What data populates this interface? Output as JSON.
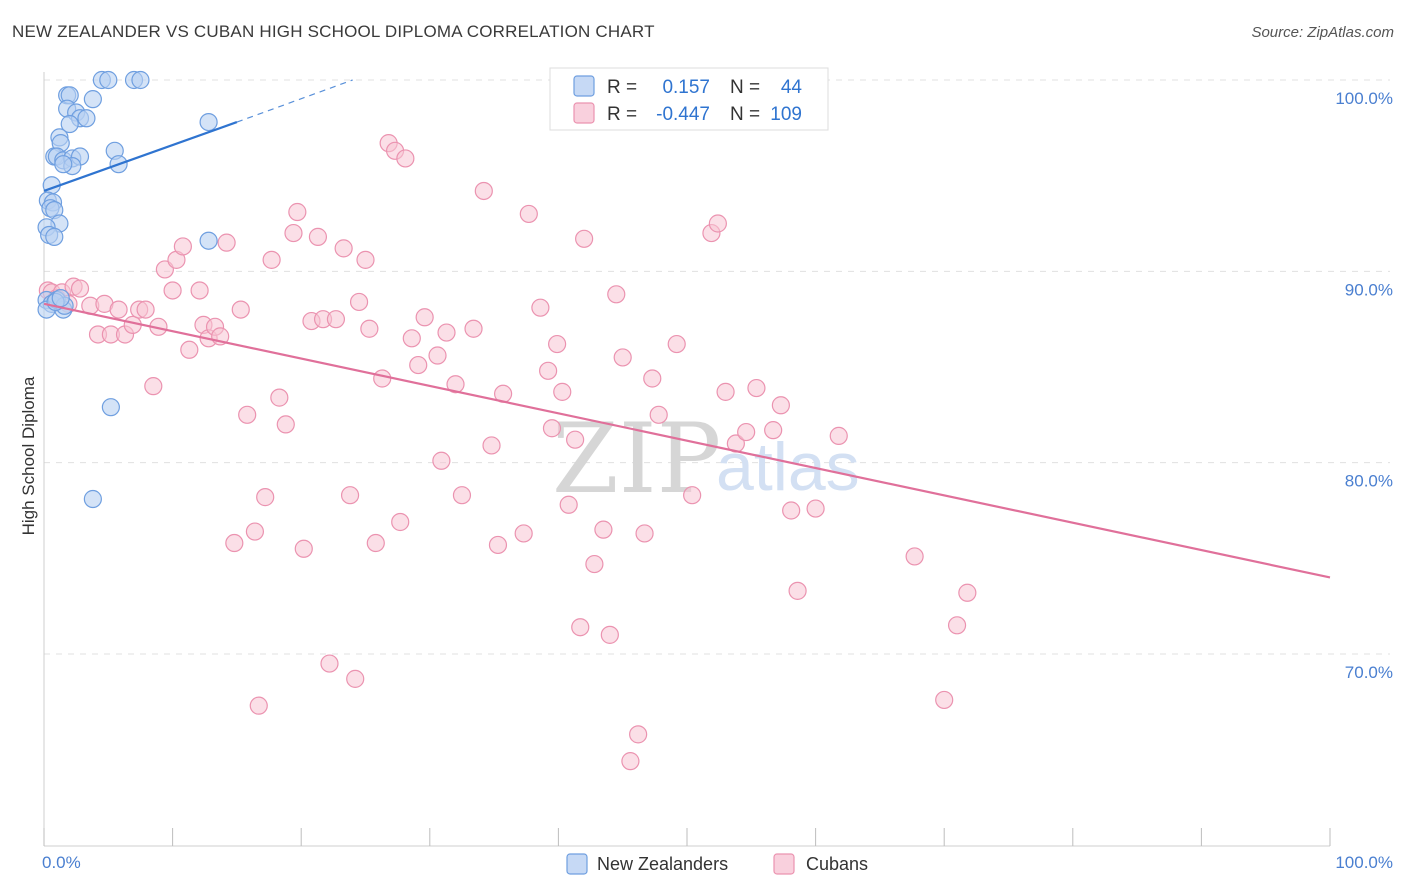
{
  "header": {
    "title": "NEW ZEALANDER VS CUBAN HIGH SCHOOL DIPLOMA CORRELATION CHART",
    "source": "Source: ZipAtlas.com"
  },
  "watermark": {
    "zip": "ZIP",
    "atlas": "atlas"
  },
  "legend": {
    "r_label": "R =",
    "n_label": "N =",
    "rows": [
      {
        "name": "New Zealanders",
        "r": "0.157",
        "n": "44"
      },
      {
        "name": "Cubans",
        "r": "-0.447",
        "n": "109"
      }
    ]
  },
  "colors": {
    "nz_fill": "#b8d0f2",
    "nz_stroke": "#6f9fe0",
    "nz_line": "#2f74d0",
    "cu_fill": "#f8c4d4",
    "cu_stroke": "#eb93b0",
    "cu_line": "#e0709a",
    "accent_text": "#2f74d0",
    "grid": "#e0e0e0"
  },
  "chart_data": {
    "type": "scatter",
    "title": "NEW ZEALANDER VS CUBAN HIGH SCHOOL DIPLOMA CORRELATION CHART",
    "xlabel": "",
    "ylabel": "High School Diploma",
    "xlim": [
      0,
      100
    ],
    "ylim": [
      60,
      101
    ],
    "x_tick_labels": [
      {
        "value": 0,
        "label": "0.0%"
      },
      {
        "value": 100,
        "label": "100.0%"
      }
    ],
    "y_ticks": [
      {
        "value": 100,
        "label": "100.0%"
      },
      {
        "value": 90,
        "label": "90.0%"
      },
      {
        "value": 80,
        "label": "80.0%"
      },
      {
        "value": 70,
        "label": "70.0%"
      }
    ],
    "x_minor_ticks": [
      0,
      10,
      20,
      30,
      40,
      50,
      60,
      70,
      80,
      90,
      100
    ],
    "series": [
      {
        "name": "New Zealanders",
        "R": 0.157,
        "N": 44,
        "trend": {
          "x1": 0,
          "y1": 94.2,
          "x2": 15,
          "y2": 97.8,
          "dashed_to_x": 24,
          "dashed_to_y": 100.0
        },
        "points": [
          [
            4.5,
            100.0
          ],
          [
            5.0,
            100.0
          ],
          [
            7.0,
            100.0
          ],
          [
            7.5,
            100.0
          ],
          [
            1.8,
            99.2
          ],
          [
            2.0,
            99.2
          ],
          [
            3.8,
            99.0
          ],
          [
            1.8,
            98.5
          ],
          [
            2.5,
            98.3
          ],
          [
            2.8,
            98.0
          ],
          [
            3.3,
            98.0
          ],
          [
            2.0,
            97.7
          ],
          [
            12.8,
            97.8
          ],
          [
            1.2,
            97.0
          ],
          [
            1.3,
            96.7
          ],
          [
            5.5,
            96.3
          ],
          [
            0.8,
            96.0
          ],
          [
            1.0,
            96.0
          ],
          [
            1.5,
            95.8
          ],
          [
            2.2,
            95.9
          ],
          [
            2.8,
            96.0
          ],
          [
            2.2,
            95.5
          ],
          [
            1.5,
            95.6
          ],
          [
            5.8,
            95.6
          ],
          [
            0.6,
            94.5
          ],
          [
            0.3,
            93.7
          ],
          [
            0.7,
            93.6
          ],
          [
            0.5,
            93.3
          ],
          [
            0.8,
            93.2
          ],
          [
            1.2,
            92.5
          ],
          [
            0.2,
            92.3
          ],
          [
            0.4,
            91.9
          ],
          [
            0.8,
            91.8
          ],
          [
            12.8,
            91.6
          ],
          [
            0.2,
            88.5
          ],
          [
            0.6,
            88.3
          ],
          [
            1.5,
            88.0
          ],
          [
            0.2,
            88.0
          ],
          [
            1.0,
            88.5
          ],
          [
            5.2,
            82.9
          ],
          [
            3.8,
            78.1
          ],
          [
            1.6,
            88.2
          ],
          [
            0.9,
            88.4
          ],
          [
            1.3,
            88.6
          ]
        ]
      },
      {
        "name": "Cubans",
        "R": -0.447,
        "N": 109,
        "trend": {
          "x1": 0,
          "y1": 88.3,
          "x2": 100,
          "y2": 74.0
        },
        "points": [
          [
            0.3,
            89.0
          ],
          [
            0.6,
            88.9
          ],
          [
            1.0,
            88.6
          ],
          [
            1.4,
            88.9
          ],
          [
            1.9,
            88.3
          ],
          [
            2.3,
            89.2
          ],
          [
            2.8,
            89.1
          ],
          [
            3.6,
            88.2
          ],
          [
            4.2,
            86.7
          ],
          [
            4.7,
            88.3
          ],
          [
            5.2,
            86.7
          ],
          [
            5.8,
            88.0
          ],
          [
            6.3,
            86.7
          ],
          [
            6.9,
            87.2
          ],
          [
            7.4,
            88.0
          ],
          [
            7.9,
            88.0
          ],
          [
            8.5,
            84.0
          ],
          [
            8.9,
            87.1
          ],
          [
            9.4,
            90.1
          ],
          [
            10.0,
            89.0
          ],
          [
            10.3,
            90.6
          ],
          [
            10.8,
            91.3
          ],
          [
            11.3,
            85.9
          ],
          [
            12.1,
            89.0
          ],
          [
            12.4,
            87.2
          ],
          [
            12.8,
            86.5
          ],
          [
            13.3,
            87.1
          ],
          [
            13.7,
            86.6
          ],
          [
            14.2,
            91.5
          ],
          [
            14.8,
            75.8
          ],
          [
            15.3,
            88.0
          ],
          [
            15.8,
            82.5
          ],
          [
            16.4,
            76.4
          ],
          [
            16.7,
            67.3
          ],
          [
            17.2,
            78.2
          ],
          [
            17.7,
            90.6
          ],
          [
            18.3,
            83.4
          ],
          [
            18.8,
            82.0
          ],
          [
            19.4,
            92.0
          ],
          [
            19.7,
            93.1
          ],
          [
            20.2,
            75.5
          ],
          [
            20.8,
            87.4
          ],
          [
            21.3,
            91.8
          ],
          [
            21.7,
            87.5
          ],
          [
            22.2,
            69.5
          ],
          [
            22.7,
            87.5
          ],
          [
            23.3,
            91.2
          ],
          [
            23.8,
            78.3
          ],
          [
            24.2,
            68.7
          ],
          [
            24.5,
            88.4
          ],
          [
            25.0,
            90.6
          ],
          [
            25.3,
            87.0
          ],
          [
            25.8,
            75.8
          ],
          [
            26.3,
            84.4
          ],
          [
            26.8,
            96.7
          ],
          [
            27.3,
            96.3
          ],
          [
            27.7,
            76.9
          ],
          [
            28.1,
            95.9
          ],
          [
            28.6,
            86.5
          ],
          [
            29.1,
            85.1
          ],
          [
            29.6,
            87.6
          ],
          [
            30.6,
            85.6
          ],
          [
            30.9,
            80.1
          ],
          [
            31.3,
            86.8
          ],
          [
            32.0,
            84.1
          ],
          [
            32.5,
            78.3
          ],
          [
            33.4,
            87.0
          ],
          [
            34.2,
            94.2
          ],
          [
            34.8,
            80.9
          ],
          [
            35.3,
            75.7
          ],
          [
            35.7,
            83.6
          ],
          [
            37.3,
            76.3
          ],
          [
            37.7,
            93.0
          ],
          [
            38.6,
            88.1
          ],
          [
            39.2,
            84.8
          ],
          [
            39.5,
            81.8
          ],
          [
            39.9,
            86.2
          ],
          [
            40.3,
            83.7
          ],
          [
            40.8,
            77.8
          ],
          [
            41.3,
            81.2
          ],
          [
            41.7,
            71.4
          ],
          [
            42.0,
            91.7
          ],
          [
            42.8,
            74.7
          ],
          [
            43.5,
            76.5
          ],
          [
            44.0,
            71.0
          ],
          [
            44.5,
            88.8
          ],
          [
            45.0,
            85.5
          ],
          [
            45.6,
            64.4
          ],
          [
            46.2,
            65.8
          ],
          [
            46.7,
            76.3
          ],
          [
            47.3,
            84.4
          ],
          [
            47.8,
            82.5
          ],
          [
            49.2,
            86.2
          ],
          [
            50.4,
            78.3
          ],
          [
            51.9,
            92.0
          ],
          [
            52.4,
            92.5
          ],
          [
            53.0,
            83.7
          ],
          [
            53.8,
            81.0
          ],
          [
            54.6,
            81.6
          ],
          [
            55.4,
            83.9
          ],
          [
            56.7,
            81.7
          ],
          [
            57.3,
            83.0
          ],
          [
            58.1,
            77.5
          ],
          [
            58.6,
            73.3
          ],
          [
            60.0,
            77.6
          ],
          [
            61.8,
            81.4
          ],
          [
            67.7,
            75.1
          ],
          [
            70.0,
            67.6
          ],
          [
            71.0,
            71.5
          ],
          [
            71.8,
            73.2
          ]
        ]
      }
    ]
  }
}
